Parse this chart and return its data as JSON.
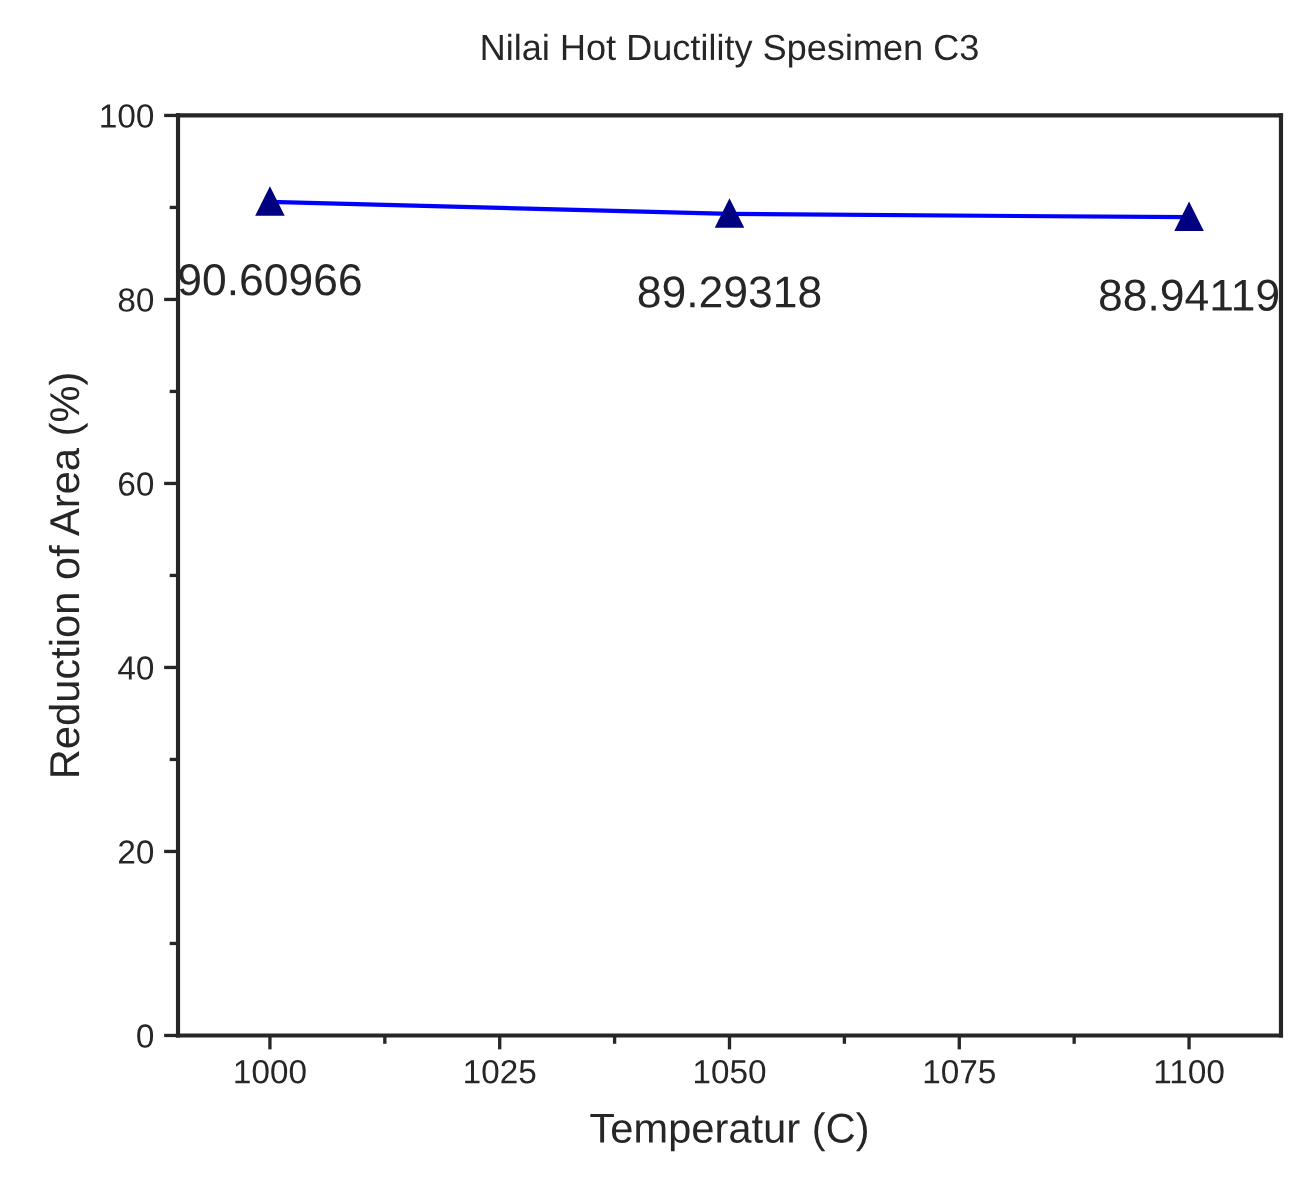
{
  "chart_data": {
    "type": "line",
    "title": "Nilai Hot Ductility Spesimen C3",
    "xlabel": "Temperatur (C)",
    "ylabel": "Reduction of Area (%)",
    "x": [
      1000,
      1050,
      1100
    ],
    "series": [
      {
        "color": "#0000ff",
        "values": [
          90.60966,
          89.29318,
          88.94119
        ],
        "value_labels": [
          "90.60966",
          "89.29318",
          "88.94119"
        ]
      }
    ],
    "xlim": [
      990,
      1110
    ],
    "xticks": [
      1000,
      {
        "value": 1012.5,
        "label": null
      },
      1025,
      {
        "value": 1037.5,
        "label": null
      },
      1050,
      {
        "value": 1062.5,
        "label": null
      },
      1075,
      {
        "value": 1087.5,
        "label": null
      },
      1100
    ],
    "ylim": [
      0,
      100
    ],
    "yticks": [
      0,
      {
        "value": 10,
        "label": null
      },
      20,
      {
        "value": 30,
        "label": null
      },
      40,
      {
        "value": 50,
        "label": null
      },
      60,
      {
        "value": 70,
        "label": null
      },
      80,
      {
        "value": 90,
        "label": null
      },
      100
    ],
    "marker": "triangle",
    "line_style": "solid",
    "grid": false,
    "legend": false
  }
}
